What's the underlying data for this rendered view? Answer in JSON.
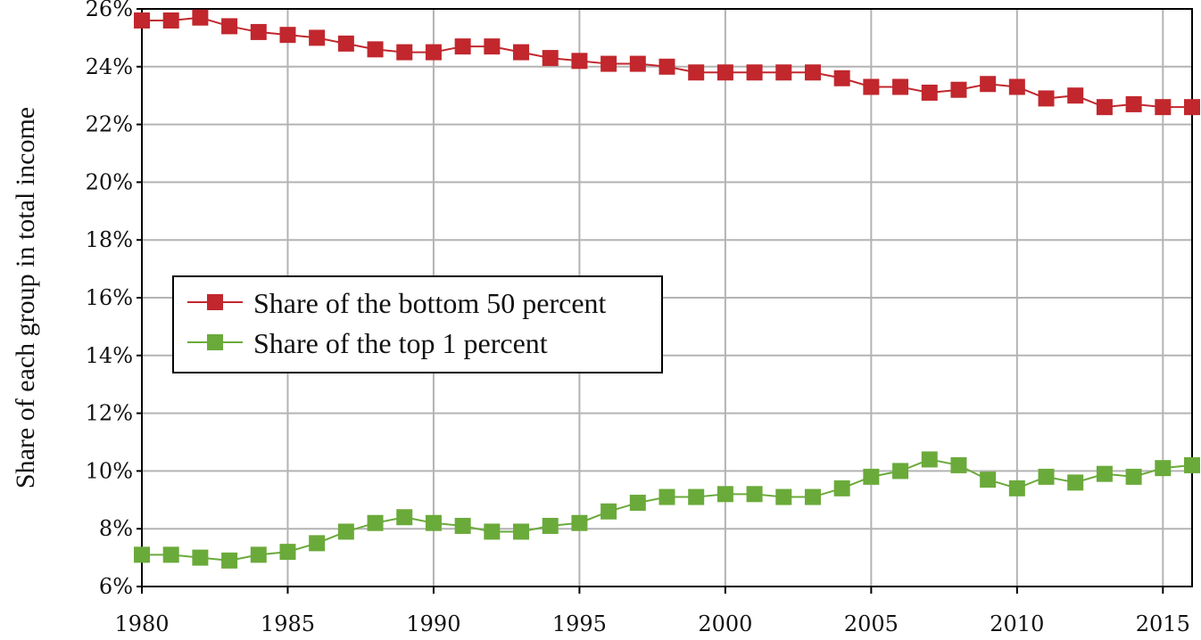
{
  "chart_data": {
    "type": "line",
    "title": "",
    "xlabel": "",
    "ylabel": "Share of each group in total income",
    "xlim": [
      1980,
      2016
    ],
    "ylim": [
      6,
      26
    ],
    "y_ticks": [
      6,
      8,
      10,
      12,
      14,
      16,
      18,
      20,
      22,
      24,
      26
    ],
    "y_tick_labels": [
      "6%",
      "8%",
      "10%",
      "12%",
      "14%",
      "16%",
      "18%",
      "20%",
      "22%",
      "24%",
      "26%"
    ],
    "x_ticks": [
      1980,
      1985,
      1990,
      1995,
      2000,
      2005,
      2010,
      2015
    ],
    "x_tick_labels": [
      "1980",
      "1985",
      "1990",
      "1995",
      "2000",
      "2005",
      "2010",
      "2015"
    ],
    "grid": true,
    "legend_position": "center-left",
    "x": [
      1980,
      1981,
      1982,
      1983,
      1984,
      1985,
      1986,
      1987,
      1988,
      1989,
      1990,
      1991,
      1992,
      1993,
      1994,
      1995,
      1996,
      1997,
      1998,
      1999,
      2000,
      2001,
      2002,
      2003,
      2004,
      2005,
      2006,
      2007,
      2008,
      2009,
      2010,
      2011,
      2012,
      2013,
      2014,
      2015,
      2016
    ],
    "series": [
      {
        "name": "Share of the bottom 50 percent",
        "color": "#c1272d",
        "marker": "square",
        "values": [
          25.6,
          25.6,
          25.7,
          25.4,
          25.2,
          25.1,
          25.0,
          24.8,
          24.6,
          24.5,
          24.5,
          24.7,
          24.7,
          24.5,
          24.3,
          24.2,
          24.1,
          24.1,
          24.0,
          23.8,
          23.8,
          23.8,
          23.8,
          23.8,
          23.6,
          23.3,
          23.3,
          23.1,
          23.2,
          23.4,
          23.3,
          22.9,
          23.0,
          22.6,
          22.7,
          22.6,
          22.6
        ]
      },
      {
        "name": "Share of the top 1 percent",
        "color": "#6aaa3a",
        "marker": "square",
        "values": [
          7.1,
          7.1,
          7.0,
          6.9,
          7.1,
          7.2,
          7.5,
          7.9,
          8.2,
          8.4,
          8.2,
          8.1,
          7.9,
          7.9,
          8.1,
          8.2,
          8.6,
          8.9,
          9.1,
          9.1,
          9.2,
          9.2,
          9.1,
          9.1,
          9.4,
          9.8,
          10.0,
          10.4,
          10.2,
          9.7,
          9.4,
          9.8,
          9.6,
          9.9,
          9.8,
          10.1,
          10.2
        ]
      }
    ]
  }
}
